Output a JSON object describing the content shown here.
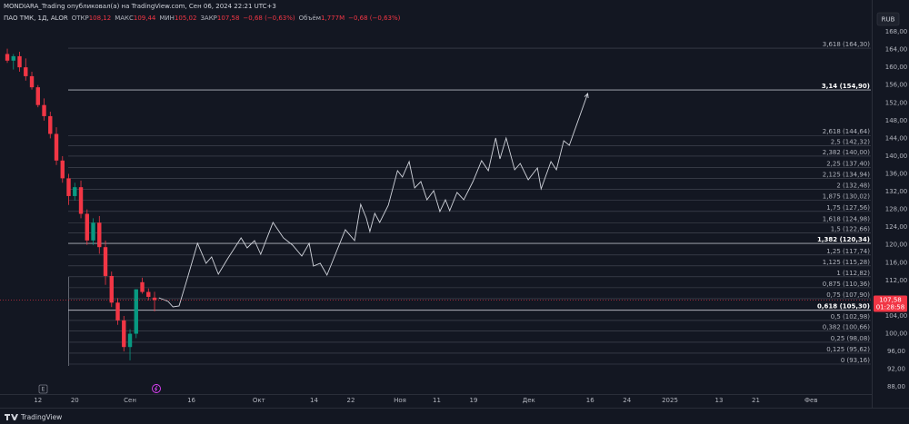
{
  "chart_data": {
    "type": "candlestick",
    "header": {
      "publisher": "MONDIARA_Trading опубликовал(а) на TradingView.com, Сен 06, 2024 22:21 UTC+3",
      "symbol": "ПАО ТМК, 1Д, ALOR",
      "open_label": "ОТКР",
      "open": {
        "value": 108.12,
        "label": "108,12"
      },
      "high_label": "МАКС",
      "high": {
        "value": 109.44,
        "label": "109,44"
      },
      "low_label": "МИН",
      "low": {
        "value": 105.02,
        "label": "105,02"
      },
      "close_label": "ЗАКР",
      "close": {
        "value": 107.58,
        "label": "107,58"
      },
      "change": "−0,68 (−0,63%)",
      "volume_label": "Объём",
      "volume": {
        "value": 1777000,
        "label": "1,777M"
      },
      "volume_change": "−0,68 (−0,63%)"
    },
    "currency": "RUB",
    "up_color": "#089981",
    "down_color": "#f23645",
    "x": [
      0,
      1,
      2,
      3,
      4,
      5,
      6,
      7,
      8,
      9,
      10,
      11,
      12,
      13,
      14,
      15,
      16,
      17,
      18,
      19,
      20,
      21,
      22,
      23,
      24
    ],
    "open": [
      163,
      161.5,
      162.5,
      160,
      158,
      155.5,
      151.5,
      149,
      145,
      139,
      135,
      131,
      133,
      127,
      121,
      125,
      119.5,
      113,
      107,
      103,
      97,
      100,
      111.6,
      109.4,
      108.12
    ],
    "high": [
      164.2,
      163,
      163.5,
      162,
      159,
      156,
      153,
      150,
      146.5,
      140,
      136,
      134,
      134.5,
      128,
      126,
      126.5,
      121,
      114,
      108,
      104,
      101,
      110,
      112.6,
      110.2,
      109.44
    ],
    "low": [
      161,
      159.5,
      159,
      157,
      155,
      151,
      148,
      144,
      138,
      134,
      129,
      130,
      126,
      120,
      120,
      118,
      111,
      106,
      102,
      96,
      94,
      99,
      109,
      107.5,
      105.02
    ],
    "close": [
      161.5,
      162.5,
      160,
      158,
      155.5,
      151.5,
      149,
      145,
      139,
      135,
      131,
      133,
      127,
      121,
      125,
      119.5,
      113,
      107,
      103,
      97,
      100,
      110,
      109.4,
      108.3,
      107.58
    ],
    "projection": {
      "color": "#d1d4dc",
      "x": [
        24.7,
        26.2,
        27.0,
        28.0,
        29.2,
        31.0,
        32.4,
        33.3,
        34.4,
        35.9,
        38.1,
        39.1,
        40.3,
        41.3,
        43.3,
        45.0,
        46.5,
        48.0,
        49.2,
        49.9,
        51.0,
        52.1,
        55.1,
        56.6,
        57.6,
        58.5,
        59.1,
        59.9,
        60.7,
        62.1,
        63.6,
        64.4,
        65.5,
        66.4,
        67.4,
        68.4,
        69.5,
        70.5,
        71.4,
        72.1,
        73.3,
        74.4,
        75.9,
        77.3,
        78.4,
        79.6,
        80.3,
        81.3,
        82.7,
        83.6,
        84.9,
        86.4,
        87.0,
        88.6,
        89.5,
        90.7,
        91.6,
        94.6
      ],
      "values": [
        108.08,
        107.26,
        106.04,
        106.24,
        111.76,
        120.35,
        115.85,
        117.28,
        113.4,
        116.88,
        121.58,
        119.33,
        120.96,
        117.9,
        125.06,
        121.58,
        119.94,
        117.49,
        120.35,
        115.24,
        115.85,
        113.19,
        123.42,
        120.96,
        129.14,
        126.08,
        123.01,
        127.1,
        125.06,
        128.94,
        136.71,
        135.28,
        138.76,
        132.83,
        134.26,
        130.17,
        132.21,
        127.51,
        130.17,
        127.71,
        131.8,
        130.17,
        134.26,
        138.96,
        136.71,
        144.07,
        139.37,
        144.07,
        136.92,
        138.35,
        134.67,
        137.33,
        132.62,
        138.76,
        136.92,
        143.46,
        142.44,
        154.09
      ]
    },
    "fib_levels": [
      {
        "value": 93.16,
        "label": "0 (93,16)"
      },
      {
        "value": 95.62,
        "label": "0,125 (95,62)"
      },
      {
        "value": 98.08,
        "label": "0,25 (98,08)"
      },
      {
        "value": 100.66,
        "label": "0,382 (100,66)"
      },
      {
        "value": 102.98,
        "label": "0,5 (102,98)"
      },
      {
        "value": 105.3,
        "label": "0,618 (105,30)",
        "highlight": true
      },
      {
        "value": 107.9,
        "label": "0,75 (107,90)"
      },
      {
        "value": 110.36,
        "label": "0,875 (110,36)"
      },
      {
        "value": 112.82,
        "label": "1 (112,82)"
      },
      {
        "value": 115.28,
        "label": "1,125 (115,28)"
      },
      {
        "value": 117.74,
        "label": "1,25 (117,74)"
      },
      {
        "value": 120.34,
        "label": "1,382 (120,34)",
        "highlight": true
      },
      {
        "value": 122.66,
        "label": "1,5 (122,66)"
      },
      {
        "value": 124.98,
        "label": "1,618 (124,98)"
      },
      {
        "value": 127.56,
        "label": "1,75 (127,56)"
      },
      {
        "value": 130.02,
        "label": "1,875 (130,02)"
      },
      {
        "value": 132.48,
        "label": "2 (132,48)"
      },
      {
        "value": 134.94,
        "label": "2,125 (134,94)"
      },
      {
        "value": 137.4,
        "label": "2,25 (137,40)"
      },
      {
        "value": 140.0,
        "label": "2,382 (140,00)"
      },
      {
        "value": 142.32,
        "label": "2,5 (142,32)"
      },
      {
        "value": 144.64,
        "label": "2,618 (144,64)"
      },
      {
        "value": 154.9,
        "label": "3,14 (154,90)",
        "highlight": true
      },
      {
        "value": 164.3,
        "label": "3,618 (164,30)"
      }
    ],
    "last_price": {
      "value": 107.58,
      "label": "107,58"
    },
    "countdown": "01:28:58",
    "ylim": [
      84.16,
      175.16
    ],
    "yticks": [
      {
        "value": 88,
        "label": "88,00"
      },
      {
        "value": 92,
        "label": "92,00"
      },
      {
        "value": 96,
        "label": "96,00"
      },
      {
        "value": 100,
        "label": "100,00"
      },
      {
        "value": 104,
        "label": "104,00"
      },
      {
        "value": 108,
        "label": "108,00"
      },
      {
        "value": 112,
        "label": "112,00"
      },
      {
        "value": 116,
        "label": "116,00"
      },
      {
        "value": 120,
        "label": "120,00"
      },
      {
        "value": 124,
        "label": "124,00"
      },
      {
        "value": 128,
        "label": "128,00"
      },
      {
        "value": 132,
        "label": "132,00"
      },
      {
        "value": 136,
        "label": "136,00"
      },
      {
        "value": 140,
        "label": "140,00"
      },
      {
        "value": 144,
        "label": "144,00"
      },
      {
        "value": 148,
        "label": "148,00"
      },
      {
        "value": 152,
        "label": "152,00"
      },
      {
        "value": 156,
        "label": "156,00"
      },
      {
        "value": 160,
        "label": "160,00"
      },
      {
        "value": 164,
        "label": "164,00"
      },
      {
        "value": 168,
        "label": "168,00"
      }
    ],
    "xlim": [
      -1.19,
      140.74
    ],
    "xticks": [
      {
        "value": 5,
        "label": "12"
      },
      {
        "value": 11,
        "label": "20"
      },
      {
        "value": 20,
        "label": "Сен"
      },
      {
        "value": 30,
        "label": "16"
      },
      {
        "value": 41,
        "label": "Окт"
      },
      {
        "value": 50,
        "label": "14"
      },
      {
        "value": 56,
        "label": "22"
      },
      {
        "value": 64,
        "label": "Ноя"
      },
      {
        "value": 70,
        "label": "11"
      },
      {
        "value": 76,
        "label": "19"
      },
      {
        "value": 85,
        "label": "Дек"
      },
      {
        "value": 95,
        "label": "16"
      },
      {
        "value": 101,
        "label": "24"
      },
      {
        "value": 108,
        "label": "2025"
      },
      {
        "value": 116,
        "label": "13"
      },
      {
        "value": 122,
        "label": "21"
      },
      {
        "value": 131,
        "label": "Фев"
      }
    ],
    "grid": false,
    "brand": "TradingView"
  }
}
